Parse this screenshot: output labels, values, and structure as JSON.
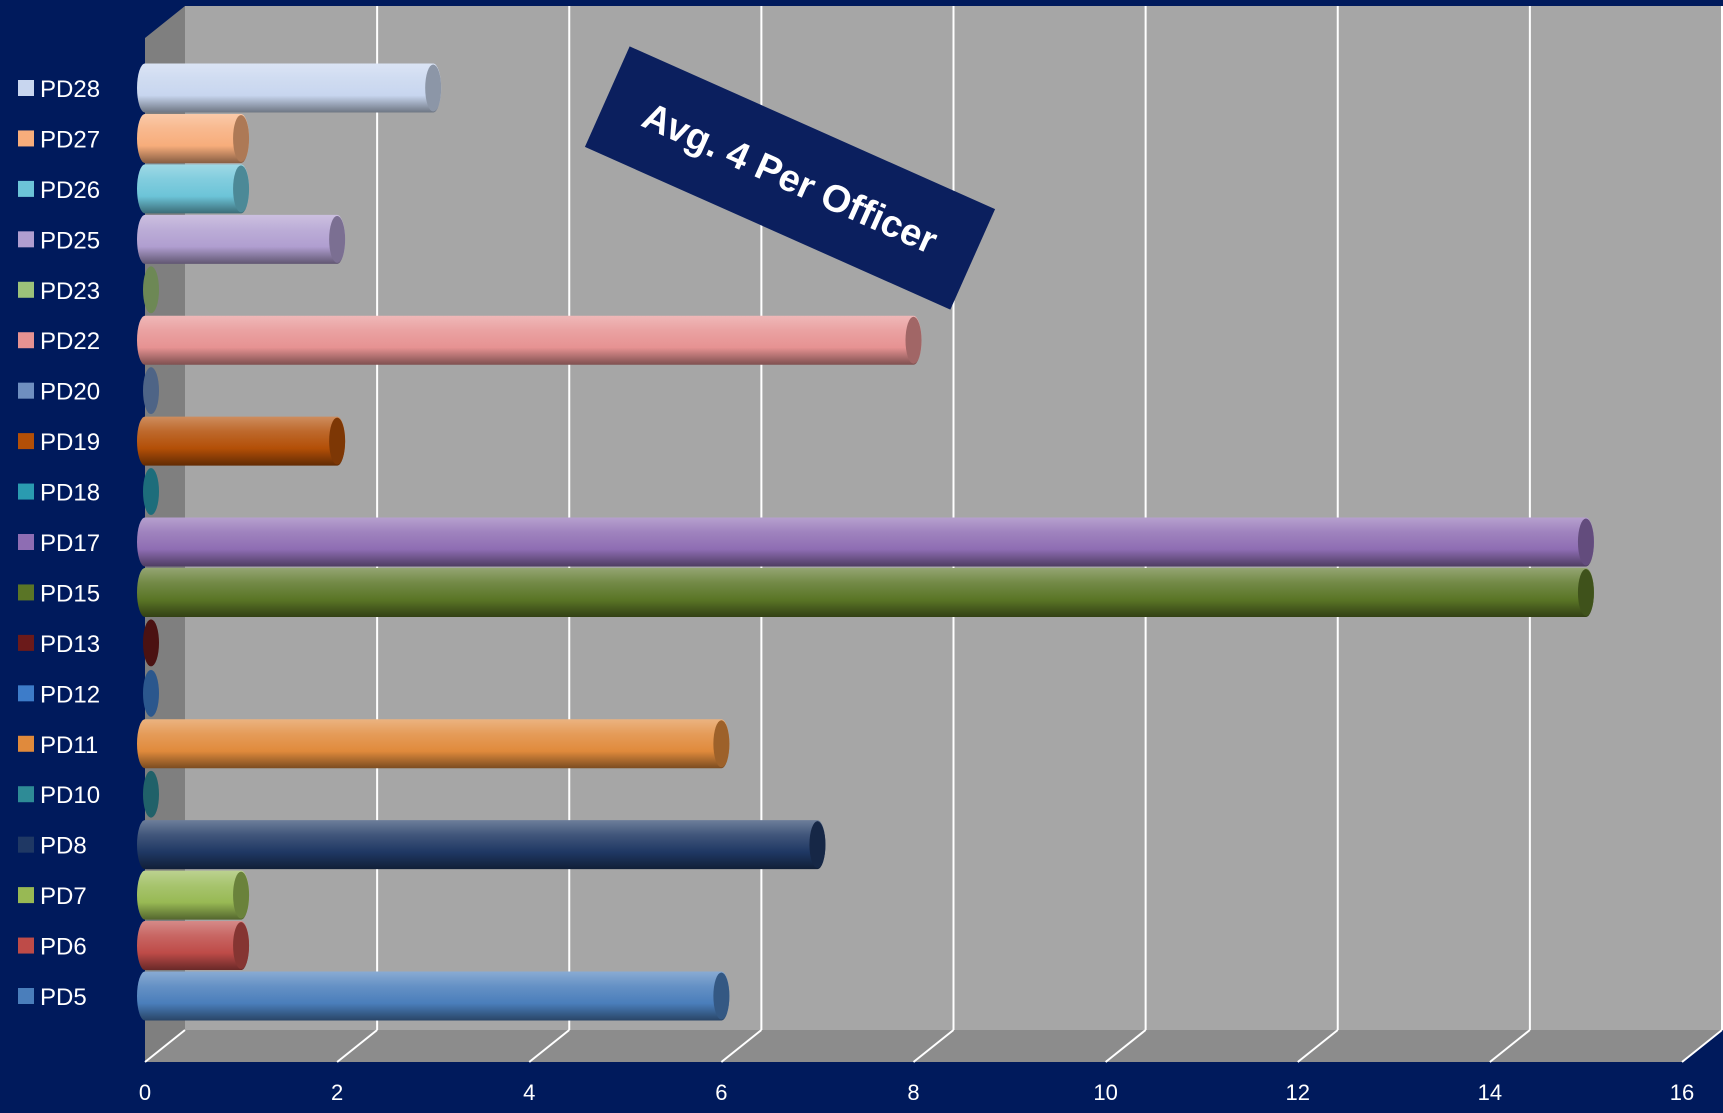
{
  "chart_data": {
    "type": "bar",
    "orientation": "horizontal",
    "style": "3d-cylinder",
    "categories": [
      "PD5",
      "PD6",
      "PD7",
      "PD8",
      "PD10",
      "PD11",
      "PD12",
      "PD13",
      "PD15",
      "PD17",
      "PD18",
      "PD19",
      "PD20",
      "PD22",
      "PD23",
      "PD25",
      "PD26",
      "PD27",
      "PD28"
    ],
    "values": [
      6,
      1,
      1,
      7,
      0,
      6,
      0,
      0,
      15,
      15,
      0,
      2,
      0,
      8,
      0,
      2,
      1,
      1,
      3
    ],
    "colors": [
      "#4a7ebb",
      "#be4b48",
      "#98b954",
      "#1f3864",
      "#2e8b96",
      "#e08a3c",
      "#3d7cc9",
      "#6b1a1a",
      "#5a7526",
      "#8e6db3",
      "#2a9bb0",
      "#b34f07",
      "#6f8fc0",
      "#e69292",
      "#9cc27a",
      "#b09ed0",
      "#6cc4d8",
      "#f7ad7b",
      "#c8d6ef"
    ],
    "xlim": [
      0,
      16
    ],
    "xticks": [
      0,
      2,
      4,
      6,
      8,
      10,
      12,
      14,
      16
    ],
    "xtick_labels": [
      "0",
      "2",
      "4",
      "6",
      "8",
      "10",
      "12",
      "14",
      "16"
    ],
    "grid": true,
    "legend_placement": "left",
    "title": "",
    "xlabel": "",
    "ylabel": "",
    "annotation": "Avg. 4 Per Officer"
  },
  "colors": {
    "background": "#001a5c",
    "plot_wall": "#a6a6a6",
    "plot_floor": "#8c8c8c",
    "gridline": "#ffffff",
    "annotation_box": "#0b1f5e",
    "text": "#ffffff"
  }
}
